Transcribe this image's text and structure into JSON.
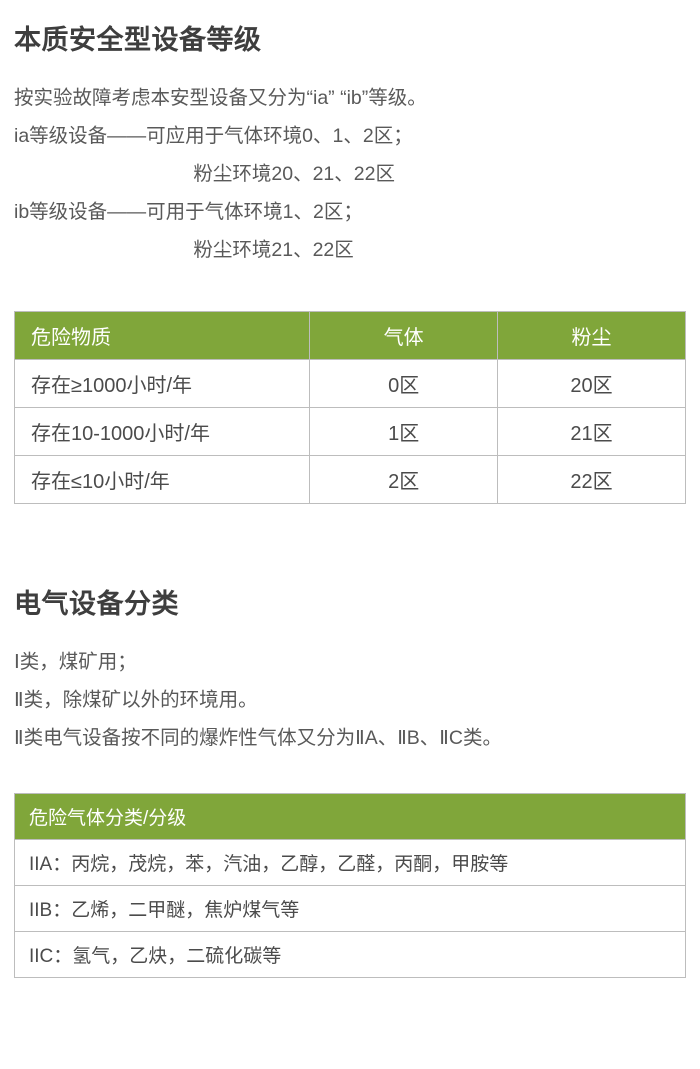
{
  "colors": {
    "header_bg": "#80a63a",
    "header_fg": "#ffffff",
    "border": "#bdbdbd",
    "body_text": "#595959",
    "cell_text": "#4b4b4b",
    "heading_text": "#3e3e3e",
    "page_bg": "#ffffff"
  },
  "s1": {
    "title": "本质安全型设备等级",
    "p1": "按实验故障考虑本安型设备又分为“ia” “ib”等级。",
    "p2": "ia等级设备——可应用于气体环境0、1、2区；",
    "p3": "粉尘环境20、21、22区",
    "p4": "ib等级设备——可用于气体环境1、2区；",
    "p5": "粉尘环境21、22区"
  },
  "t1": {
    "head": {
      "c0": "危险物质",
      "c1": "气体",
      "c2": "粉尘"
    },
    "rows": [
      {
        "c0": "存在≥1000小时/年",
        "c1": "0区",
        "c2": "20区"
      },
      {
        "c0": "存在10-1000小时/年",
        "c1": "1区",
        "c2": "21区"
      },
      {
        "c0": "存在≤10小时/年",
        "c1": "2区",
        "c2": "22区"
      }
    ]
  },
  "s2": {
    "title": "电气设备分类",
    "p1": "Ⅰ类，煤矿用；",
    "p2": "Ⅱ类，除煤矿以外的环境用。",
    "p3": "Ⅱ类电气设备按不同的爆炸性气体又分为ⅡA、ⅡB、ⅡC类。"
  },
  "t2": {
    "head": "危险气体分类/分级",
    "rows": [
      "IIA：丙烷，茂烷，苯，汽油，乙醇，乙醛，丙酮，甲胺等",
      "IIB：乙烯，二甲醚，焦炉煤气等",
      "IIC：氢气，乙炔，二硫化碳等"
    ]
  }
}
